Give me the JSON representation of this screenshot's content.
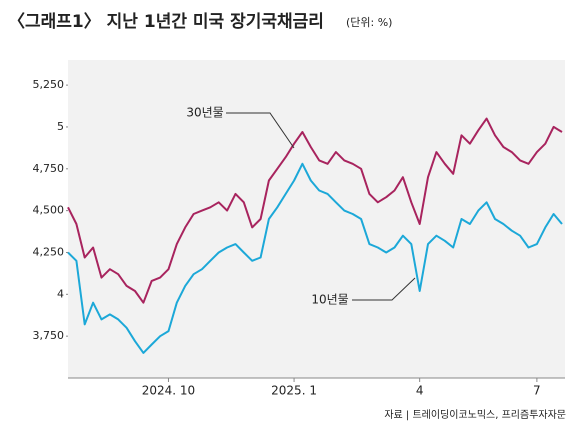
{
  "chart_data": {
    "type": "line",
    "title": "〈그래프1〉 지난 1년간 미국 장기국채금리",
    "subtitle": "(단위: %)",
    "source": "자료 | 트레이딩이코노믹스, 프리즘투자자문",
    "categories": [
      null,
      null,
      null,
      null,
      null,
      null,
      null,
      null,
      null,
      null,
      null,
      null,
      "2024. 10",
      null,
      null,
      null,
      null,
      null,
      null,
      null,
      null,
      null,
      null,
      null,
      null,
      null,
      null,
      "2025. 1",
      null,
      null,
      null,
      null,
      null,
      null,
      null,
      null,
      null,
      null,
      null,
      null,
      null,
      null,
      "4",
      null,
      null,
      null,
      null,
      null,
      null,
      null,
      null,
      null,
      null,
      null,
      null,
      null,
      "7",
      null,
      null,
      null
    ],
    "series": [
      {
        "name": "30년물",
        "color": "#a8245e",
        "values": [
          4.52,
          4.42,
          4.22,
          4.28,
          4.1,
          4.15,
          4.12,
          4.05,
          4.02,
          3.95,
          4.08,
          4.1,
          4.15,
          4.3,
          4.4,
          4.48,
          4.5,
          4.52,
          4.55,
          4.5,
          4.6,
          4.55,
          4.4,
          4.45,
          4.68,
          4.75,
          4.82,
          4.9,
          4.97,
          4.88,
          4.8,
          4.78,
          4.85,
          4.8,
          4.78,
          4.75,
          4.6,
          4.55,
          4.58,
          4.62,
          4.7,
          4.55,
          4.42,
          4.7,
          4.85,
          4.78,
          4.72,
          4.95,
          4.9,
          4.98,
          5.05,
          4.95,
          4.88,
          4.85,
          4.8,
          4.78,
          4.85,
          4.9,
          5.0,
          4.97
        ]
      },
      {
        "name": "10년물",
        "color": "#1ca8d8",
        "values": [
          4.25,
          4.2,
          3.82,
          3.95,
          3.85,
          3.88,
          3.85,
          3.8,
          3.72,
          3.65,
          3.7,
          3.75,
          3.78,
          3.95,
          4.05,
          4.12,
          4.15,
          4.2,
          4.25,
          4.28,
          4.3,
          4.25,
          4.2,
          4.22,
          4.45,
          4.52,
          4.6,
          4.68,
          4.78,
          4.68,
          4.62,
          4.6,
          4.55,
          4.5,
          4.48,
          4.45,
          4.3,
          4.28,
          4.25,
          4.28,
          4.35,
          4.3,
          4.02,
          4.3,
          4.35,
          4.32,
          4.28,
          4.45,
          4.42,
          4.5,
          4.55,
          4.45,
          4.42,
          4.38,
          4.35,
          4.28,
          4.3,
          4.4,
          4.48,
          4.42
        ]
      }
    ],
    "ylim": [
      3.5,
      5.4
    ],
    "yticks": [
      {
        "value": 3.75,
        "label": "3,750"
      },
      4,
      {
        "value": 4.25,
        "label": "4,250"
      },
      {
        "value": 4.5,
        "label": "4,500"
      },
      {
        "value": 4.75,
        "label": "4,750"
      },
      5,
      {
        "value": 5.25,
        "label": "5,250"
      }
    ],
    "grid": false
  }
}
